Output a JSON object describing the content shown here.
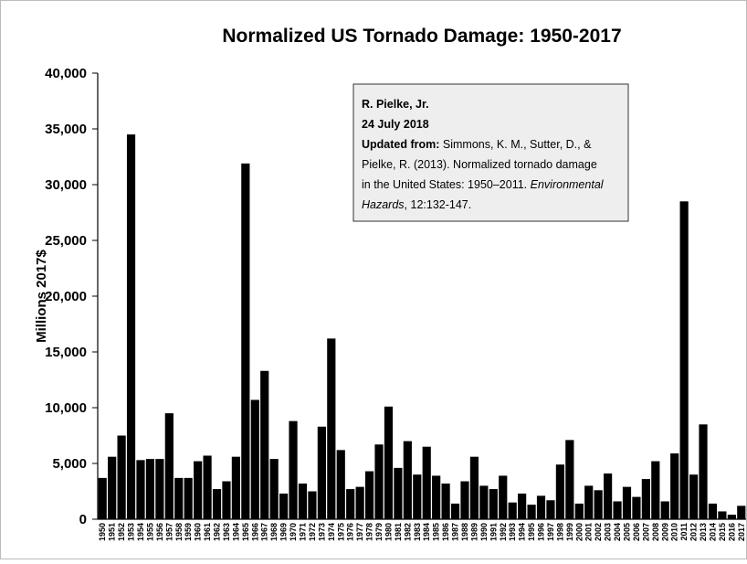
{
  "chart_data": {
    "type": "bar",
    "title": "Normalized US Tornado Damage: 1950-2017",
    "y_label": "Millions 2017$",
    "annotation": [
      "R. Pielke, Jr.",
      "24 July 2018",
      "Updated from:",
      " Simmons, K. M., Sutter, D., &",
      "Pielke, R. (2013). Normalized tornado damage",
      "in the United States: 1950–2011. ",
      "Environmental",
      "Hazards",
      ", 12:132-147."
    ],
    "categories": [
      "1950",
      "1951",
      "1952",
      "1953",
      "1954",
      "1955",
      "1956",
      "1957",
      "1958",
      "1959",
      "1960",
      "1961",
      "1962",
      "1963",
      "1964",
      "1965",
      "1966",
      "1967",
      "1968",
      "1969",
      "1970",
      "1971",
      "1972",
      "1973",
      "1974",
      "1975",
      "1976",
      "1977",
      "1978",
      "1979",
      "1980",
      "1981",
      "1982",
      "1983",
      "1984",
      "1985",
      "1986",
      "1987",
      "1988",
      "1989",
      "1990",
      "1991",
      "1992",
      "1993",
      "1994",
      "1995",
      "1996",
      "1997",
      "1998",
      "1999",
      "2000",
      "2001",
      "2002",
      "2003",
      "2004",
      "2005",
      "2006",
      "2007",
      "2008",
      "2009",
      "2010",
      "2011",
      "2012",
      "2013",
      "2014",
      "2015",
      "2016",
      "2017"
    ],
    "values": [
      3700,
      5600,
      7500,
      34500,
      5300,
      5400,
      5400,
      9500,
      3700,
      3700,
      5200,
      5700,
      2700,
      3400,
      5600,
      31900,
      10700,
      13300,
      5400,
      2300,
      8800,
      3200,
      2500,
      8300,
      16200,
      6200,
      2700,
      2900,
      4300,
      6700,
      10100,
      4600,
      7000,
      4000,
      6500,
      3900,
      3200,
      1400,
      3400,
      5600,
      3000,
      2700,
      3900,
      1500,
      2300,
      1300,
      2100,
      1700,
      4900,
      7100,
      1400,
      3000,
      2600,
      4100,
      1600,
      2900,
      2000,
      3600,
      5200,
      1600,
      5900,
      28500,
      4000,
      8500,
      1400,
      700,
      400,
      1200
    ],
    "color": "#000000",
    "ylim": [
      0,
      40000
    ],
    "yticks": [
      0,
      {
        "value": 5000,
        "label": "5,000"
      },
      {
        "value": 10000,
        "label": "10,000"
      },
      {
        "value": 15000,
        "label": "15,000"
      },
      {
        "value": 20000,
        "label": "20,000"
      },
      {
        "value": 25000,
        "label": "25,000"
      },
      {
        "value": 30000,
        "label": "30,000"
      },
      {
        "value": 35000,
        "label": "35,000"
      },
      {
        "value": 40000,
        "label": "40,000"
      }
    ],
    "grid": false
  }
}
